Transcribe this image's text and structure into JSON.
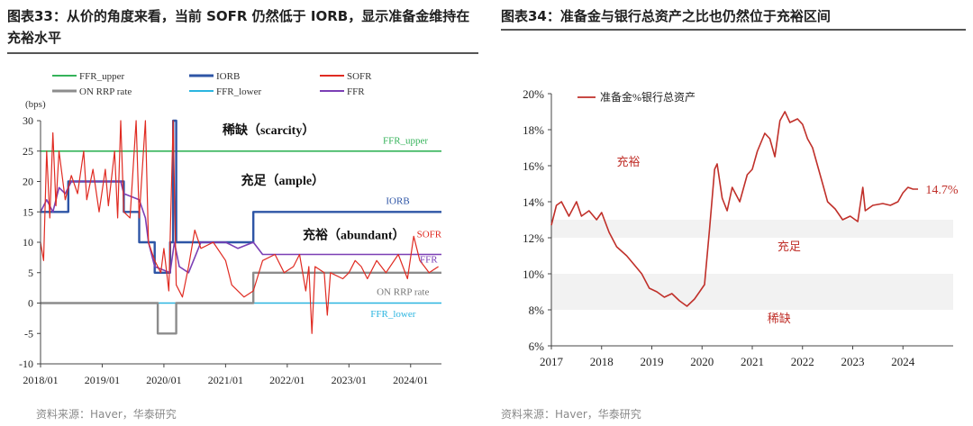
{
  "left": {
    "title": "图表33：从价的角度来看，当前 SOFR 仍然低于 IORB，显示准备金维持在充裕水平",
    "source": "资料来源：Haver，华泰研究",
    "chart_data": {
      "type": "line",
      "ylabel": "(bps)",
      "ylim": [
        -10,
        30
      ],
      "yticks": [
        "30",
        "25",
        "20",
        "15",
        "10",
        "5",
        "0",
        "-5",
        "-10"
      ],
      "xlim": [
        2018.0,
        2024.5
      ],
      "xticks": [
        "2018/01",
        "2019/01",
        "2020/01",
        "2021/01",
        "2022/01",
        "2023/01",
        "2024/01"
      ],
      "legend": [
        "FFR_upper",
        "IORB",
        "SOFR",
        "ON RRP rate",
        "FFR_lower",
        "FFR"
      ],
      "labels": {
        "scarcity": "稀缺（scarcity）",
        "ample": "充足（ample）",
        "abundant": "充裕（abundant）",
        "FFR_upper": "FFR_upper",
        "IORB": "IORB",
        "SOFR": "SOFR",
        "FFR": "FFR",
        "ON_RRP": "ON RRP rate",
        "FFR_lower": "FFR_lower"
      },
      "colors": {
        "FFR_upper": "#35b35a",
        "IORB": "#2e55a6",
        "SOFR": "#e02b22",
        "ON_RRP": "#8c8c8c",
        "FFR_lower": "#2bb5e0",
        "FFR": "#7b3fb5"
      },
      "series": [
        {
          "name": "FFR_upper",
          "values": [
            [
              2018.0,
              25
            ],
            [
              2024.5,
              25
            ]
          ]
        },
        {
          "name": "FFR_lower",
          "values": [
            [
              2018.0,
              0
            ],
            [
              2024.5,
              0
            ]
          ]
        },
        {
          "name": "IORB",
          "values": [
            [
              2018.0,
              15
            ],
            [
              2018.45,
              15
            ],
            [
              2018.45,
              20
            ],
            [
              2019.35,
              20
            ],
            [
              2019.35,
              15
            ],
            [
              2019.6,
              15
            ],
            [
              2019.6,
              10
            ],
            [
              2019.85,
              10
            ],
            [
              2019.85,
              5
            ],
            [
              2020.1,
              5
            ],
            [
              2020.1,
              10
            ],
            [
              2020.15,
              10
            ],
            [
              2020.15,
              30
            ],
            [
              2020.2,
              30
            ],
            [
              2020.2,
              10
            ],
            [
              2021.45,
              10
            ],
            [
              2021.45,
              15
            ],
            [
              2024.5,
              15
            ]
          ]
        },
        {
          "name": "ON_RRP",
          "values": [
            [
              2018.0,
              0
            ],
            [
              2019.9,
              0
            ],
            [
              2019.9,
              -5
            ],
            [
              2020.2,
              -5
            ],
            [
              2020.2,
              0
            ],
            [
              2021.45,
              0
            ],
            [
              2021.45,
              5
            ],
            [
              2024.5,
              5
            ]
          ]
        },
        {
          "name": "FFR",
          "values": [
            [
              2018.0,
              15
            ],
            [
              2018.1,
              17
            ],
            [
              2018.2,
              15
            ],
            [
              2018.3,
              19
            ],
            [
              2018.4,
              18
            ],
            [
              2018.5,
              20
            ],
            [
              2019.3,
              20
            ],
            [
              2019.35,
              18
            ],
            [
              2019.6,
              17
            ],
            [
              2019.7,
              14
            ],
            [
              2019.75,
              10
            ],
            [
              2019.85,
              6
            ],
            [
              2020.1,
              5
            ],
            [
              2020.17,
              10
            ],
            [
              2020.25,
              6
            ],
            [
              2020.4,
              5
            ],
            [
              2020.6,
              10
            ],
            [
              2021.0,
              10
            ],
            [
              2021.2,
              9
            ],
            [
              2021.45,
              10
            ],
            [
              2021.6,
              8
            ],
            [
              2024.5,
              8
            ]
          ]
        },
        {
          "name": "SOFR",
          "values": [
            [
              2018.0,
              10
            ],
            [
              2018.05,
              7
            ],
            [
              2018.1,
              25
            ],
            [
              2018.15,
              14
            ],
            [
              2018.2,
              28
            ],
            [
              2018.25,
              16
            ],
            [
              2018.3,
              25
            ],
            [
              2018.4,
              17
            ],
            [
              2018.5,
              21
            ],
            [
              2018.6,
              18
            ],
            [
              2018.7,
              25
            ],
            [
              2018.75,
              17
            ],
            [
              2018.85,
              22
            ],
            [
              2018.95,
              15
            ],
            [
              2019.05,
              22
            ],
            [
              2019.1,
              16
            ],
            [
              2019.2,
              25
            ],
            [
              2019.25,
              14
            ],
            [
              2019.3,
              30
            ],
            [
              2019.35,
              15
            ],
            [
              2019.45,
              14
            ],
            [
              2019.55,
              30
            ],
            [
              2019.6,
              14
            ],
            [
              2019.7,
              30
            ],
            [
              2019.75,
              10
            ],
            [
              2019.85,
              7
            ],
            [
              2019.95,
              5
            ],
            [
              2020.0,
              9
            ],
            [
              2020.08,
              2
            ],
            [
              2020.15,
              30
            ],
            [
              2020.2,
              3
            ],
            [
              2020.3,
              1
            ],
            [
              2020.4,
              6
            ],
            [
              2020.5,
              12
            ],
            [
              2020.6,
              9
            ],
            [
              2020.8,
              10
            ],
            [
              2021.0,
              7
            ],
            [
              2021.1,
              3
            ],
            [
              2021.3,
              1
            ],
            [
              2021.45,
              2
            ],
            [
              2021.6,
              7
            ],
            [
              2021.8,
              8
            ],
            [
              2021.95,
              5
            ],
            [
              2022.1,
              6
            ],
            [
              2022.2,
              8
            ],
            [
              2022.3,
              2
            ],
            [
              2022.35,
              6
            ],
            [
              2022.4,
              -5
            ],
            [
              2022.45,
              6
            ],
            [
              2022.6,
              5
            ],
            [
              2022.65,
              -2
            ],
            [
              2022.7,
              5
            ],
            [
              2022.9,
              4
            ],
            [
              2023.0,
              5
            ],
            [
              2023.1,
              7
            ],
            [
              2023.2,
              6
            ],
            [
              2023.3,
              4
            ],
            [
              2023.45,
              7
            ],
            [
              2023.6,
              5
            ],
            [
              2023.8,
              8
            ],
            [
              2023.95,
              4
            ],
            [
              2024.05,
              11
            ],
            [
              2024.15,
              7
            ],
            [
              2024.3,
              5
            ],
            [
              2024.45,
              6
            ]
          ]
        }
      ]
    }
  },
  "right": {
    "title": "图表34：准备金与银行总资产之比也仍然位于充裕区间",
    "source": "资料来源：Haver，华泰研究",
    "chart_data": {
      "type": "line",
      "ylim": [
        6,
        20
      ],
      "yticks": [
        "20%",
        "18%",
        "16%",
        "14%",
        "12%",
        "10%",
        "8%",
        "6%"
      ],
      "xlim": [
        2017.0,
        2025.0
      ],
      "xticks": [
        "2017",
        "2018",
        "2019",
        "2020",
        "2021",
        "2022",
        "2023",
        "2024"
      ],
      "legend": [
        "准备金%银行总资产"
      ],
      "line_color": "#c0302a",
      "band_color": "#f2f2f2",
      "bands": [
        {
          "from": 12,
          "to": 13,
          "label": "充足"
        },
        {
          "from": 8,
          "to": 10,
          "label": "稀缺"
        }
      ],
      "labels": {
        "abundant": "充裕",
        "ample": "充足",
        "scarce": "稀缺"
      },
      "last_value_label": "14.7%",
      "series": [
        {
          "name": "准备金%银行总资产",
          "values": [
            [
              2017.0,
              12.7
            ],
            [
              2017.1,
              13.8
            ],
            [
              2017.2,
              14.0
            ],
            [
              2017.35,
              13.2
            ],
            [
              2017.5,
              14.0
            ],
            [
              2017.6,
              13.2
            ],
            [
              2017.75,
              13.5
            ],
            [
              2017.9,
              13.0
            ],
            [
              2018.0,
              13.4
            ],
            [
              2018.15,
              12.3
            ],
            [
              2018.3,
              11.5
            ],
            [
              2018.5,
              11.0
            ],
            [
              2018.65,
              10.5
            ],
            [
              2018.8,
              10.0
            ],
            [
              2018.95,
              9.2
            ],
            [
              2019.1,
              9.0
            ],
            [
              2019.25,
              8.7
            ],
            [
              2019.4,
              8.9
            ],
            [
              2019.55,
              8.5
            ],
            [
              2019.7,
              8.2
            ],
            [
              2019.85,
              8.6
            ],
            [
              2019.95,
              9.0
            ],
            [
              2020.05,
              9.4
            ],
            [
              2020.15,
              12.5
            ],
            [
              2020.25,
              15.8
            ],
            [
              2020.3,
              16.1
            ],
            [
              2020.4,
              14.2
            ],
            [
              2020.5,
              13.5
            ],
            [
              2020.6,
              14.8
            ],
            [
              2020.75,
              14.0
            ],
            [
              2020.9,
              15.5
            ],
            [
              2021.0,
              15.8
            ],
            [
              2021.1,
              16.8
            ],
            [
              2021.25,
              17.8
            ],
            [
              2021.35,
              17.5
            ],
            [
              2021.45,
              16.5
            ],
            [
              2021.55,
              18.5
            ],
            [
              2021.65,
              19.0
            ],
            [
              2021.75,
              18.4
            ],
            [
              2021.9,
              18.6
            ],
            [
              2022.0,
              18.3
            ],
            [
              2022.1,
              17.5
            ],
            [
              2022.2,
              17.0
            ],
            [
              2022.3,
              16.0
            ],
            [
              2022.4,
              15.0
            ],
            [
              2022.5,
              14.0
            ],
            [
              2022.65,
              13.6
            ],
            [
              2022.8,
              13.0
            ],
            [
              2022.95,
              13.2
            ],
            [
              2023.1,
              12.9
            ],
            [
              2023.2,
              14.8
            ],
            [
              2023.25,
              13.5
            ],
            [
              2023.4,
              13.8
            ],
            [
              2023.6,
              13.9
            ],
            [
              2023.75,
              13.8
            ],
            [
              2023.9,
              14.0
            ],
            [
              2024.0,
              14.5
            ],
            [
              2024.1,
              14.8
            ],
            [
              2024.2,
              14.7
            ],
            [
              2024.3,
              14.7
            ]
          ]
        }
      ]
    }
  }
}
